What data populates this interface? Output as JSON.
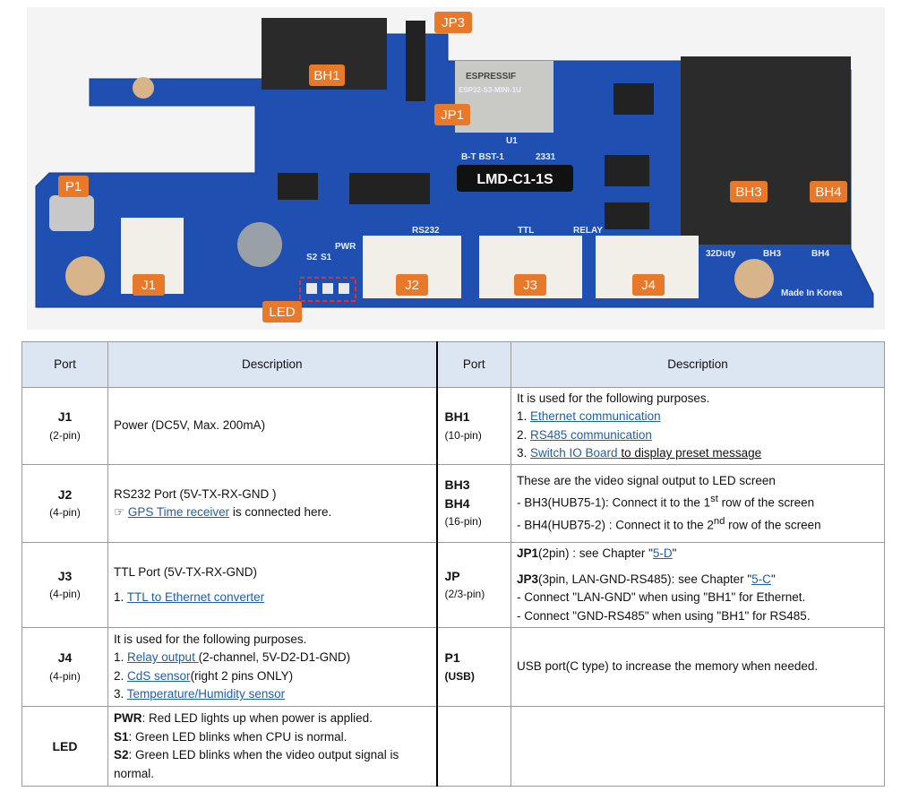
{
  "photo": {
    "board_label": "LMD-C1-1S",
    "callouts": [
      "JP3",
      "BH1",
      "JP1",
      "P1",
      "BH3",
      "BH4",
      "J1",
      "J2",
      "J3",
      "J4",
      "LED"
    ],
    "silkscreen": [
      "RS232",
      "TTL",
      "RELAY",
      "Made In Korea",
      "ESP32-S3-MINI-1U",
      "ESPRESSIF",
      "U1",
      "BH3",
      "BH4",
      "32Duty",
      "PWR",
      "S1",
      "S2",
      "B-T BST-1",
      "2331"
    ],
    "colors": {
      "pcb": "#1f4fb0",
      "callout": "#e8782a",
      "board_label_bg": "#111111"
    }
  },
  "table": {
    "headers": {
      "port": "Port",
      "description": "Description"
    },
    "left": [
      {
        "port": "J1",
        "pins": "(2-pin)",
        "lines": [
          "Power (DC5V, Max.  200mA)"
        ]
      },
      {
        "port": "J2",
        "pins": "(4-pin)",
        "line1": "RS232 Port (5V-TX-RX-GND  )",
        "pointer": "☞",
        "link": "GPS Time receiver",
        "after": " is connected here."
      },
      {
        "port": "J3",
        "pins": "(4-pin)",
        "line1": "TTL Port (5V-TX-RX-GND)",
        "num": "1. ",
        "link": "TTL to Ethernet converter"
      },
      {
        "port": "J4",
        "pins": "(4-pin)",
        "intro": "It is used for the following  purposes.",
        "items": [
          {
            "num": "1. ",
            "link": "Relay output ",
            "after": "(2-channel,  5V-D2-D1-GND)"
          },
          {
            "num": "2. ",
            "link": "CdS sensor",
            "after": "(right  2 pins ONLY)"
          },
          {
            "num": "3. ",
            "link": "Temperature/Humidity  sensor",
            "after": ""
          }
        ]
      },
      {
        "port": "LED",
        "pins": "",
        "items": [
          {
            "key": "PWR",
            "text": ": Red LED lights up when power is applied."
          },
          {
            "key": "S1",
            "text": ": Green  LED blinks  when CPU is normal."
          },
          {
            "key": "S2",
            "text": ": Green  LED blinks  when the video output signal is normal."
          }
        ]
      }
    ],
    "right": [
      {
        "port": "BH1",
        "pins": "(10-pin)",
        "intro": "It is used for the following  purposes.",
        "items": [
          {
            "num": "1. ",
            "link": "Ethernet  communication",
            "after": ""
          },
          {
            "num": "2. ",
            "link": "RS485  communication",
            "after": ""
          },
          {
            "num": "3. ",
            "link": "Switch IO Board ",
            "after": "to display  preset message"
          }
        ]
      },
      {
        "port": "BH3",
        "port2": "BH4",
        "pins": "(16-pin)",
        "intro": "These are the video signal output to LED screen",
        "l1a": " - BH3(HUB75-1):  Connect  it to the 1",
        "l1s": "st",
        "l1b": " row of the screen",
        "l2a": " - BH4(HUB75-2)  : Connect  it to the 2",
        "l2s": "nd",
        "l2b": " row of the screen"
      },
      {
        "port": "JP",
        "pins": "(2/3-pin)",
        "jp1_key": "JP1",
        "jp1_text": "(2pin)  : see Chapter \"",
        "jp1_link": "5-D",
        "jp1_end": "\"",
        "jp3_key": "JP3",
        "jp3_text": "(3pin,  LAN-GND-RS485):  see Chapter \"",
        "jp3_link": "5-C",
        "jp3_end": "\"",
        "l1": " - Connect \"LAN-GND\"  when using \"BH1\" for Ethernet.",
        "l2": " - Connect \"GND-RS485\"   when using \"BH1\" for RS485."
      },
      {
        "port": "P1",
        "pins": "(USB)",
        "lines": [
          "USB  port(C type) to increase the memory when needed."
        ]
      },
      {
        "port": "",
        "pins": "",
        "lines": []
      }
    ]
  }
}
